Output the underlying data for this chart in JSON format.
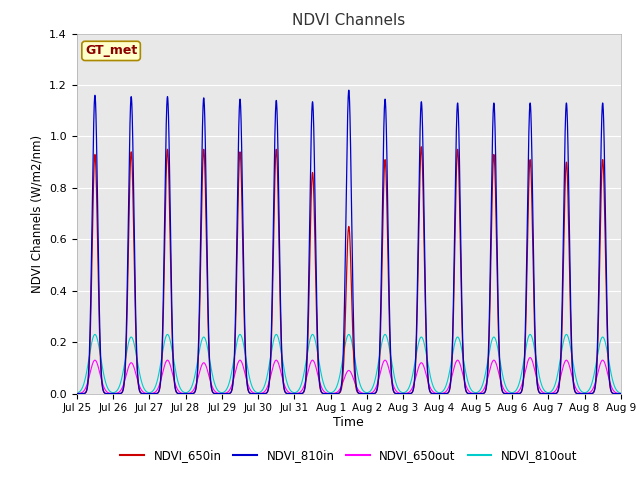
{
  "title": "NDVI Channels",
  "xlabel": "Time",
  "ylabel": "NDVI Channels (W/m2/nm)",
  "ylim": [
    0,
    1.4
  ],
  "fig_facecolor": "#f0f0f0",
  "plot_facecolor": "#e8e8e8",
  "legend_entries": [
    "NDVI_650in",
    "NDVI_810in",
    "NDVI_650out",
    "NDVI_810out"
  ],
  "legend_colors": [
    "#cc0000",
    "#0000cc",
    "#ff00ff",
    "#00cccc"
  ],
  "annotation_text": "GT_met",
  "annotation_bg": "#ffffcc",
  "annotation_border": "#aa8800",
  "xtick_labels": [
    "Jul 25",
    "Jul 26",
    "Jul 27",
    "Jul 28",
    "Jul 29",
    "Jul 30",
    "Jul 31",
    "Aug 1",
    "Aug 2",
    "Aug 3",
    "Aug 4",
    "Aug 5",
    "Aug 6",
    "Aug 7",
    "Aug 8",
    "Aug 9"
  ],
  "heights_650in": [
    0.93,
    0.94,
    0.95,
    0.95,
    0.94,
    0.95,
    0.86,
    0.65,
    0.91,
    0.96,
    0.95,
    0.93,
    0.91,
    0.9,
    0.91
  ],
  "heights_810in": [
    1.16,
    1.155,
    1.155,
    1.15,
    1.145,
    1.14,
    1.135,
    1.18,
    1.145,
    1.135,
    1.13,
    1.13,
    1.13,
    1.13,
    1.13
  ],
  "heights_650out": [
    0.13,
    0.12,
    0.13,
    0.12,
    0.13,
    0.13,
    0.13,
    0.09,
    0.13,
    0.12,
    0.13,
    0.13,
    0.14,
    0.13,
    0.13
  ],
  "heights_810out": [
    0.23,
    0.22,
    0.23,
    0.22,
    0.23,
    0.23,
    0.23,
    0.23,
    0.23,
    0.22,
    0.22,
    0.22,
    0.23,
    0.23,
    0.22
  ],
  "fwhm_in": 0.18,
  "fwhm_out_650": 0.32,
  "fwhm_out_810": 0.38,
  "grid_color": "#ffffff",
  "yticks": [
    0.0,
    0.2,
    0.4,
    0.6,
    0.8,
    1.0,
    1.2,
    1.4
  ]
}
